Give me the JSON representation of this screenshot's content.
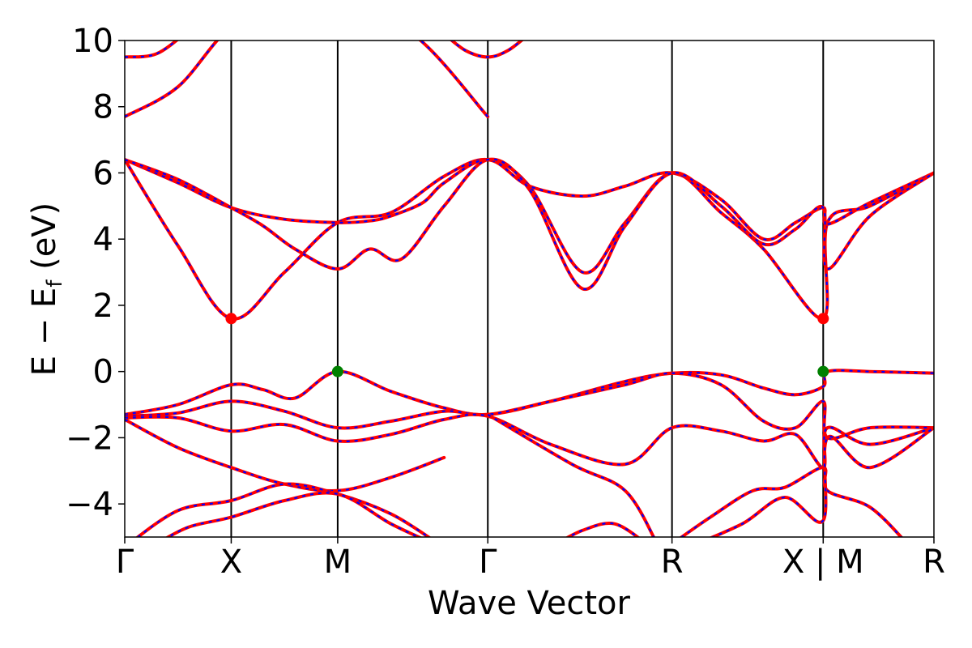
{
  "chart_data": {
    "type": "line",
    "xlabel": "Wave Vector",
    "ylabel": "E − E",
    "ylabel_sub": "f",
    "ylabel_unit": " (eV)",
    "ylim": [
      -5,
      10
    ],
    "yticks": [
      -4,
      -2,
      0,
      2,
      4,
      6,
      8,
      10
    ],
    "ytick_labels": [
      "−4",
      "−2",
      "0",
      "2",
      "4",
      "6",
      "8",
      "10"
    ],
    "xlim": [
      0,
      7.6
    ],
    "kpoints": [
      {
        "label": "Γ",
        "x": 0
      },
      {
        "label": "X",
        "x": 1.0
      },
      {
        "label": "M",
        "x": 2.0
      },
      {
        "label": "Γ",
        "x": 3.41
      },
      {
        "label": "R",
        "x": 5.14
      },
      {
        "label": "X | M",
        "x": 6.56
      },
      {
        "label": "R",
        "x": 7.6
      }
    ],
    "line_color_outer": "#ff0000",
    "line_color_inner": "#0000ff",
    "bands": [
      {
        "x": [
          0,
          0.5,
          1.0,
          1.5,
          2.0,
          2.5,
          3.0,
          3.41,
          3.8,
          4.3,
          4.7,
          5.14,
          5.6,
          6.0,
          6.56,
          6.6,
          7.0,
          7.6
        ],
        "y": [
          6.4,
          3.8,
          1.6,
          3.0,
          4.5,
          4.8,
          5.9,
          6.4,
          5.6,
          3.0,
          4.5,
          6.0,
          4.8,
          3.7,
          1.6,
          4.5,
          5.0,
          6.0
        ]
      },
      {
        "x": [
          0,
          0.5,
          1.0,
          1.5,
          2.0,
          2.3,
          2.5,
          2.8,
          3.0,
          3.41,
          3.8,
          4.3,
          4.7,
          5.14,
          5.6,
          6.0,
          6.3,
          6.56,
          6.6,
          7.0,
          7.6
        ],
        "y": [
          6.4,
          5.7,
          4.95,
          4.6,
          4.5,
          4.55,
          4.7,
          5.1,
          5.7,
          6.4,
          5.6,
          5.3,
          5.6,
          6.0,
          5.2,
          4.0,
          4.5,
          4.95,
          4.45,
          5.1,
          6.0
        ]
      },
      {
        "x": [
          0,
          0.5,
          1.0,
          1.3,
          1.6,
          2.0,
          2.3,
          2.6,
          3.0,
          3.41,
          3.8,
          4.3,
          4.7,
          5.14,
          5.6,
          6.0,
          6.3,
          6.56,
          6.6,
          7.0,
          7.6
        ],
        "y": [
          6.4,
          5.8,
          4.95,
          4.4,
          3.7,
          3.1,
          3.7,
          3.4,
          5.0,
          6.4,
          5.5,
          2.5,
          4.4,
          6.0,
          5.0,
          3.85,
          4.3,
          4.95,
          3.1,
          4.7,
          6.0
        ]
      },
      {
        "x": [
          0,
          0.5,
          1.0,
          1.5,
          2.0,
          2.7,
          3.41
        ],
        "y": [
          7.7,
          8.6,
          10.4,
          10.8,
          10.8,
          10.2,
          7.7
        ]
      },
      {
        "x": [
          0,
          0.3,
          0.6
        ],
        "y": [
          9.5,
          9.6,
          10.3
        ]
      },
      {
        "x": [
          3.0,
          3.2,
          3.41,
          3.6,
          3.8
        ],
        "y": [
          10.2,
          9.7,
          9.5,
          9.7,
          10.2
        ]
      },
      {
        "x": [
          0,
          0.5,
          1.0,
          1.3,
          1.6,
          2.0,
          2.5,
          3.0,
          3.41,
          4.0,
          4.7,
          5.14,
          5.6,
          6.0,
          6.3,
          6.56,
          6.6,
          7.0,
          7.6
        ],
        "y": [
          -1.3,
          -1.0,
          -0.4,
          -0.55,
          -0.8,
          0.0,
          -0.6,
          -1.1,
          -1.3,
          -0.9,
          -0.3,
          -0.05,
          -0.1,
          -0.5,
          -0.7,
          -0.45,
          0.0,
          0.0,
          -0.05
        ]
      },
      {
        "x": [
          0,
          0.5,
          1.0,
          1.5,
          2.0,
          2.5,
          3.0,
          3.41,
          4.0,
          4.7,
          5.14,
          5.6,
          6.0,
          6.3,
          6.56,
          6.6,
          7.0,
          7.6
        ],
        "y": [
          -1.35,
          -1.25,
          -0.9,
          -1.2,
          -1.7,
          -1.5,
          -1.2,
          -1.3,
          -0.9,
          -0.4,
          -0.05,
          -0.4,
          -1.5,
          -1.7,
          -0.9,
          -2.0,
          -1.7,
          -1.7
        ]
      },
      {
        "x": [
          0,
          0.5,
          1.0,
          1.5,
          2.0,
          2.5,
          3.0,
          3.41,
          4.0,
          4.7,
          5.14,
          5.6,
          6.0,
          6.3,
          6.56,
          6.6,
          7.0,
          7.6
        ],
        "y": [
          -1.4,
          -1.4,
          -1.8,
          -1.6,
          -2.1,
          -1.9,
          -1.45,
          -1.35,
          -2.2,
          -2.8,
          -1.7,
          -1.8,
          -2.1,
          -1.9,
          -2.9,
          -1.7,
          -2.2,
          -1.7
        ]
      },
      {
        "x": [
          0,
          0.5,
          1.0,
          1.5,
          2.0,
          2.5,
          3.0
        ],
        "y": [
          -1.45,
          -2.3,
          -2.9,
          -3.4,
          -3.6,
          -3.2,
          -2.6
        ]
      },
      {
        "x": [
          0,
          0.5,
          1.0,
          1.5,
          2.0,
          2.5,
          2.9
        ],
        "y": [
          -5.3,
          -4.2,
          -3.9,
          -3.4,
          -3.7,
          -4.3,
          -5.1
        ]
      },
      {
        "x": [
          0.3,
          0.6,
          1.0,
          1.5,
          2.0,
          2.5,
          2.9
        ],
        "y": [
          -5.2,
          -4.7,
          -4.4,
          -3.9,
          -3.7,
          -4.6,
          -5.2
        ]
      },
      {
        "x": [
          3.41,
          4.2,
          4.7,
          5.0
        ],
        "y": [
          -1.3,
          -2.8,
          -3.6,
          -5.2
        ]
      },
      {
        "x": [
          4.0,
          4.3,
          4.6,
          4.9
        ],
        "y": [
          -5.3,
          -4.8,
          -4.6,
          -5.2
        ]
      },
      {
        "x": [
          5.1,
          5.5,
          5.9,
          6.2,
          6.56,
          6.6,
          7.0,
          7.35
        ],
        "y": [
          -5.3,
          -4.4,
          -3.6,
          -3.5,
          -2.9,
          -3.6,
          -4.1,
          -5.2
        ]
      },
      {
        "x": [
          5.3,
          5.8,
          6.2,
          6.56,
          6.6,
          7.0,
          7.6
        ],
        "y": [
          -5.3,
          -4.6,
          -3.8,
          -4.5,
          -2.0,
          -2.9,
          -1.7
        ]
      }
    ],
    "markers": [
      {
        "x": 1.0,
        "y": 1.6,
        "color": "#ff0000"
      },
      {
        "x": 6.56,
        "y": 1.6,
        "color": "#ff0000"
      },
      {
        "x": 2.0,
        "y": 0.0,
        "color": "#008000"
      },
      {
        "x": 6.56,
        "y": 0.0,
        "color": "#008000"
      }
    ]
  }
}
